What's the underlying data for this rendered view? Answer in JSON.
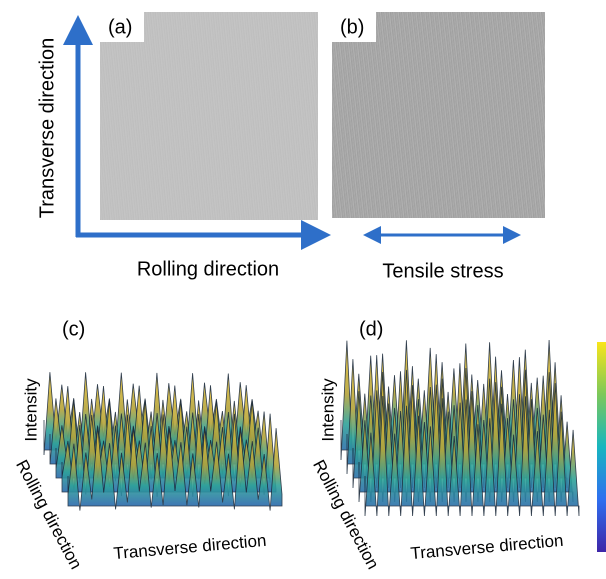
{
  "top": {
    "panels": [
      "(a)",
      "(b)"
    ],
    "y_axis": "Transverse direction",
    "x_axis": "Rolling direction",
    "stress": "Tensile stress"
  },
  "bottom": {
    "panels": [
      {
        "label": "(c)",
        "z_axis": "Intensity",
        "y_axis": "Rolling direction",
        "x_axis": "Transverse direction"
      },
      {
        "label": "(d)",
        "z_axis": "Intensity",
        "y_axis": "Rolling direction",
        "x_axis": "Transverse direction"
      }
    ]
  }
}
